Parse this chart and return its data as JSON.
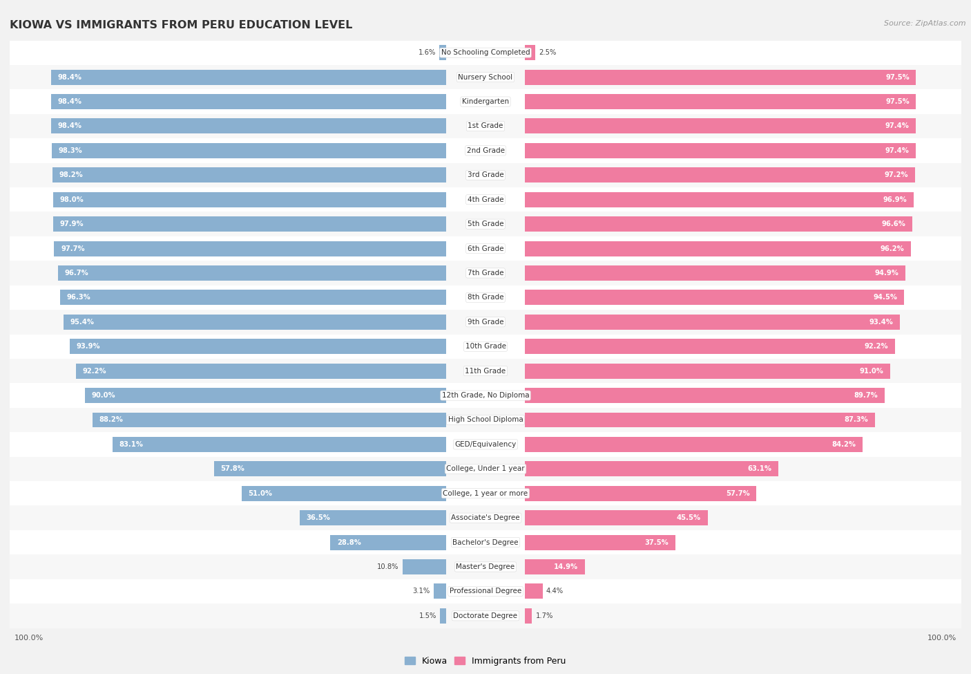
{
  "title": "Kiowa vs Immigrants from Peru Education Level",
  "source": "Source: ZipAtlas.com",
  "categories": [
    "No Schooling Completed",
    "Nursery School",
    "Kindergarten",
    "1st Grade",
    "2nd Grade",
    "3rd Grade",
    "4th Grade",
    "5th Grade",
    "6th Grade",
    "7th Grade",
    "8th Grade",
    "9th Grade",
    "10th Grade",
    "11th Grade",
    "12th Grade, No Diploma",
    "High School Diploma",
    "GED/Equivalency",
    "College, Under 1 year",
    "College, 1 year or more",
    "Associate's Degree",
    "Bachelor's Degree",
    "Master's Degree",
    "Professional Degree",
    "Doctorate Degree"
  ],
  "kiowa": [
    1.6,
    98.4,
    98.4,
    98.4,
    98.3,
    98.2,
    98.0,
    97.9,
    97.7,
    96.7,
    96.3,
    95.4,
    93.9,
    92.2,
    90.0,
    88.2,
    83.1,
    57.8,
    51.0,
    36.5,
    28.8,
    10.8,
    3.1,
    1.5
  ],
  "peru": [
    2.5,
    97.5,
    97.5,
    97.4,
    97.4,
    97.2,
    96.9,
    96.6,
    96.2,
    94.9,
    94.5,
    93.4,
    92.2,
    91.0,
    89.7,
    87.3,
    84.2,
    63.1,
    57.7,
    45.5,
    37.5,
    14.9,
    4.4,
    1.7
  ],
  "kiowa_color": "#8ab0d0",
  "peru_color": "#f07ca0",
  "bg_color": "#f2f2f2",
  "row_colors": [
    "#ffffff",
    "#f7f7f7"
  ],
  "label_color_light": "#ffffff",
  "label_color_dark": "#444444"
}
